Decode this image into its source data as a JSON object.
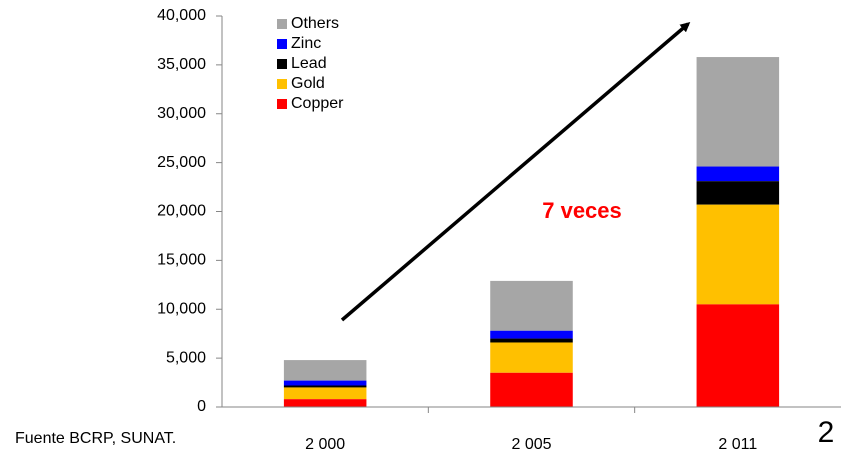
{
  "chart_data": {
    "type": "stacked_bar",
    "categories": [
      "2 000",
      "2 005",
      "2 011"
    ],
    "series": [
      {
        "name": "Copper",
        "color": "#ff0000",
        "values": [
          0.8,
          3.5,
          10.5
        ]
      },
      {
        "name": "Gold",
        "color": "#ffc000",
        "values": [
          1.2,
          3.1,
          10.2
        ]
      },
      {
        "name": "Lead",
        "color": "#000000",
        "values": [
          0.2,
          0.4,
          2.4
        ]
      },
      {
        "name": "Zinc",
        "color": "#0000ff",
        "values": [
          0.5,
          0.8,
          1.5
        ]
      },
      {
        "name": "Others",
        "color": "#a6a6a6",
        "values": [
          2.1,
          5.1,
          11.2
        ]
      }
    ],
    "unit_scale": 1000,
    "ylim": [
      0,
      40000
    ],
    "yticks": [
      0,
      {
        "value": 5000,
        "label": "5,000"
      },
      {
        "value": 10000,
        "label": "10,000"
      },
      {
        "value": 15000,
        "label": "15,000"
      },
      {
        "value": 20000,
        "label": "20,000"
      },
      {
        "value": 25000,
        "label": "25,000"
      },
      {
        "value": 30000,
        "label": "30,000"
      },
      {
        "value": 35000,
        "label": "35,000"
      },
      {
        "value": 40000,
        "label": "40,000"
      }
    ],
    "annotations": [
      "7 veces"
    ],
    "source": "Fuente BCRP, SUNAT.",
    "page_number": "2"
  }
}
